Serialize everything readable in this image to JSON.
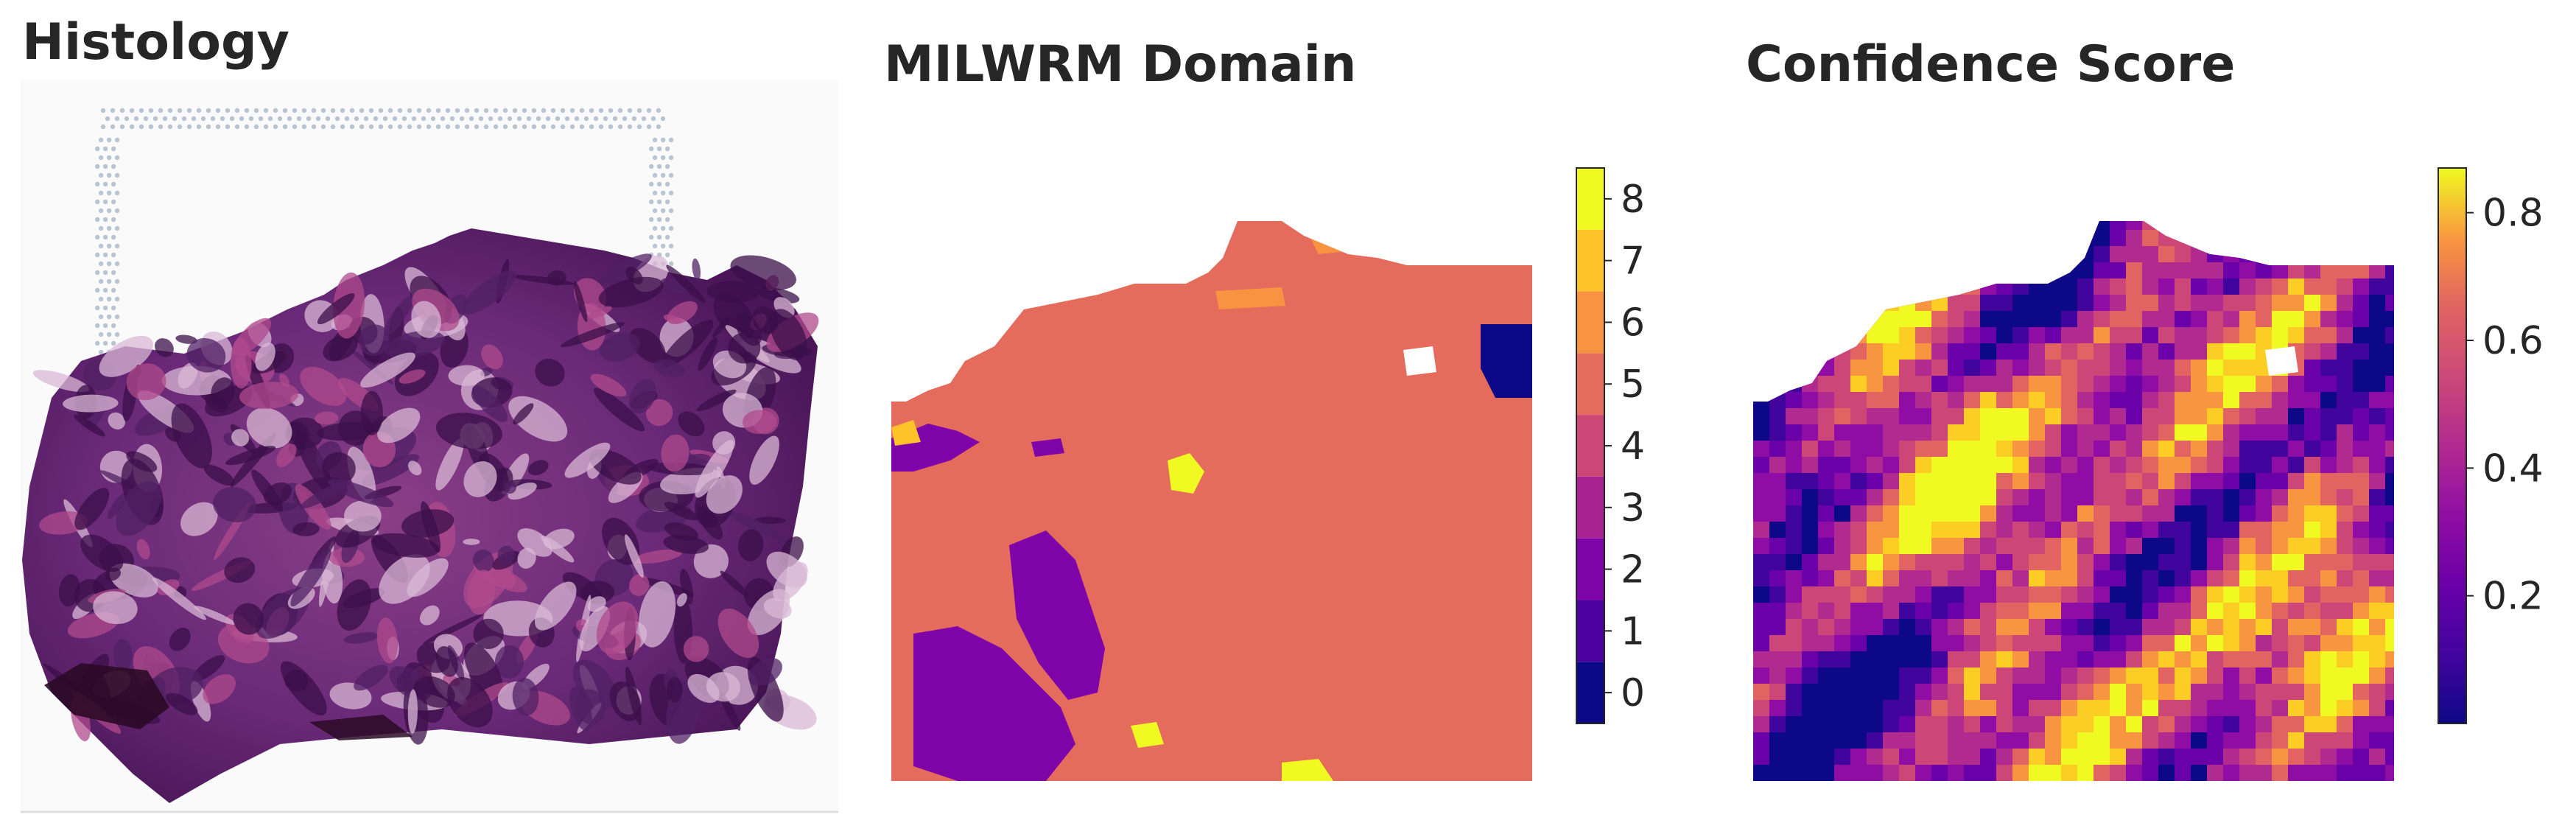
{
  "titles": {
    "histology": "Histology",
    "domain": "MILWRM Domain",
    "confidence": "Confidence Score"
  },
  "colors": {
    "tissue_dark": "#3b0f4a",
    "tissue_mid": "#6a2a78",
    "tissue_pink": "#b04a8c",
    "tissue_light": "#d9b8d6",
    "background": "#ffffff",
    "fiducial": "#b9c4d2"
  },
  "chart_data": [
    {
      "type": "heatmap",
      "title": "MILWRM Domain",
      "colorbar": {
        "type": "discrete",
        "ticks": [
          "0",
          "1",
          "2",
          "3",
          "4",
          "5",
          "6",
          "7",
          "8"
        ],
        "colors": [
          "#0d0887",
          "#4c02a1",
          "#7e03a8",
          "#a92395",
          "#cc4778",
          "#e56b5d",
          "#f89441",
          "#fdc328",
          "#f0f921"
        ]
      },
      "dominant_domain": 5,
      "regions": [
        {
          "domain": 2,
          "area": "lower-left"
        },
        {
          "domain": 2,
          "area": "left-middle"
        },
        {
          "domain": 0,
          "area": "upper-right"
        },
        {
          "domain": 0,
          "area": "right"
        },
        {
          "domain": 8,
          "area": "center-left"
        },
        {
          "domain": 8,
          "area": "bottom"
        },
        {
          "domain": 6,
          "area": "top"
        },
        {
          "domain": 7,
          "area": "upper-left"
        }
      ],
      "grid": false
    },
    {
      "type": "heatmap",
      "title": "Confidence Score",
      "colorbar": {
        "type": "continuous",
        "colormap": "plasma",
        "range": [
          0.0,
          0.87
        ],
        "ticks": [
          "0.2",
          "0.4",
          "0.6",
          "0.8"
        ],
        "tick_values": [
          0.2,
          0.4,
          0.6,
          0.8
        ]
      },
      "grid": false
    }
  ]
}
